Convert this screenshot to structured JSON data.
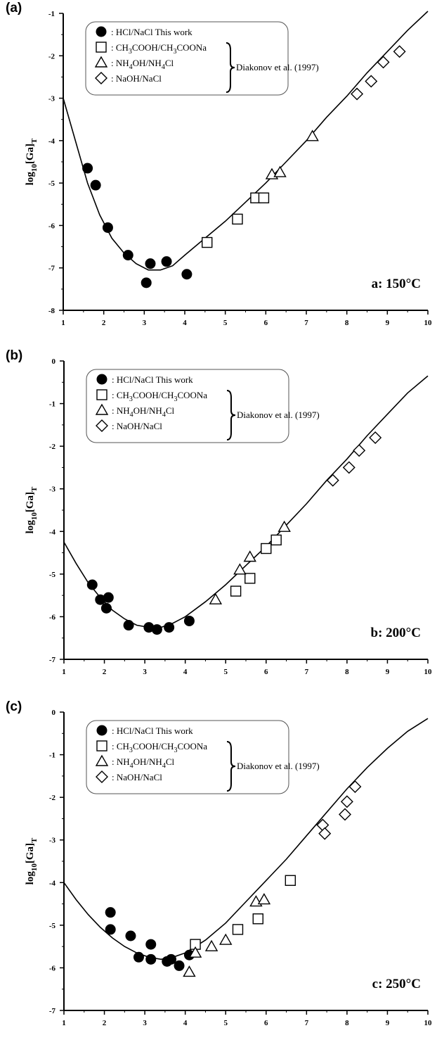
{
  "chart_data": [
    {
      "type": "scatter",
      "panel": "(a)",
      "temperature_label": "a: 150°C",
      "ylabel": "log10[Ga]T",
      "xlim": [
        1,
        10
      ],
      "ylim": [
        -8,
        -1
      ],
      "xticks": [
        "1",
        "2",
        "3",
        "4",
        "5",
        "6",
        "7",
        "8",
        "9",
        "10"
      ],
      "yticks": [
        "-1",
        "-2",
        "-3",
        "-4",
        "-5",
        "-6",
        "-7",
        "-8"
      ],
      "legend": {
        "placement": "top-left",
        "entries": [
          {
            "marker": "circle-filled",
            "label": ": HCl/NaCl   This work"
          },
          {
            "marker": "square",
            "label": ": CH3COOH/CH3COONa"
          },
          {
            "marker": "triangle",
            "label": ": NH4OH/NH4Cl"
          },
          {
            "marker": "diamond",
            "label": ": NaOH/NaCl"
          }
        ],
        "group_label": "Diakonov et al. (1997)"
      },
      "series": [
        {
          "marker": "circle-filled",
          "x": [
            1.6,
            1.8,
            2.1,
            2.6,
            3.05,
            3.15,
            3.55,
            4.05
          ],
          "y": [
            -4.65,
            -5.05,
            -6.05,
            -6.7,
            -7.35,
            -6.9,
            -6.85,
            -7.15
          ]
        },
        {
          "marker": "square",
          "x": [
            4.55,
            5.3,
            5.75,
            5.95
          ],
          "y": [
            -6.4,
            -5.85,
            -5.35,
            -5.35
          ]
        },
        {
          "marker": "triangle",
          "x": [
            6.15,
            6.35,
            7.15
          ],
          "y": [
            -4.8,
            -4.75,
            -3.9
          ]
        },
        {
          "marker": "diamond",
          "x": [
            8.25,
            8.6,
            8.9,
            9.3
          ],
          "y": [
            -2.9,
            -2.6,
            -2.15,
            -1.9
          ]
        }
      ],
      "fit_curve": {
        "x": [
          1.0,
          1.3,
          1.6,
          1.9,
          2.2,
          2.5,
          2.8,
          3.1,
          3.4,
          3.7,
          4.0,
          4.5,
          5.0,
          5.5,
          6.0,
          6.5,
          7.0,
          7.5,
          8.0,
          8.5,
          9.0,
          9.5,
          10.0
        ],
        "y": [
          -3.0,
          -4.0,
          -5.0,
          -5.75,
          -6.3,
          -6.65,
          -6.9,
          -7.05,
          -7.05,
          -6.95,
          -6.7,
          -6.3,
          -5.9,
          -5.45,
          -5.0,
          -4.5,
          -4.0,
          -3.45,
          -2.95,
          -2.4,
          -1.9,
          -1.4,
          -0.95
        ]
      }
    },
    {
      "type": "scatter",
      "panel": "(b)",
      "temperature_label": "b: 200°C",
      "ylabel": "log10[Ga]T",
      "xlim": [
        1,
        10
      ],
      "ylim": [
        -7,
        0
      ],
      "xticks": [
        "1",
        "2",
        "3",
        "4",
        "5",
        "6",
        "7",
        "8",
        "9",
        "10"
      ],
      "yticks": [
        "0",
        "-1",
        "-2",
        "-3",
        "-4",
        "-5",
        "-6",
        "-7"
      ],
      "legend": {
        "placement": "top-left",
        "entries": [
          {
            "marker": "circle-filled",
            "label": ": HCl/NaCl This work"
          },
          {
            "marker": "square",
            "label": ": CH3COOH/CH3COONa"
          },
          {
            "marker": "triangle",
            "label": ": NH4OH/NH4Cl"
          },
          {
            "marker": "diamond",
            "label": ": NaOH/NaCl"
          }
        ],
        "group_label": "Diakonov et al. (1997)"
      },
      "series": [
        {
          "marker": "circle-filled",
          "x": [
            1.7,
            1.9,
            2.05,
            2.1,
            2.6,
            3.1,
            3.3,
            3.6,
            4.1
          ],
          "y": [
            -5.25,
            -5.6,
            -5.8,
            -5.55,
            -6.2,
            -6.25,
            -6.3,
            -6.25,
            -6.1
          ]
        },
        {
          "marker": "square",
          "x": [
            5.25,
            5.6,
            6.0,
            6.25
          ],
          "y": [
            -5.4,
            -5.1,
            -4.4,
            -4.2
          ]
        },
        {
          "marker": "triangle",
          "x": [
            4.75,
            5.35,
            5.6,
            6.45
          ],
          "y": [
            -5.6,
            -4.9,
            -4.6,
            -3.9
          ]
        },
        {
          "marker": "diamond",
          "x": [
            7.65,
            8.05,
            8.3,
            8.7
          ],
          "y": [
            -2.8,
            -2.5,
            -2.1,
            -1.8
          ]
        }
      ],
      "fit_curve": {
        "x": [
          1.0,
          1.3,
          1.6,
          1.9,
          2.2,
          2.5,
          2.8,
          3.1,
          3.4,
          3.7,
          4.0,
          4.5,
          5.0,
          5.5,
          6.0,
          6.5,
          7.0,
          7.5,
          8.0,
          8.5,
          9.0,
          9.5,
          10.0
        ],
        "y": [
          -4.25,
          -4.75,
          -5.2,
          -5.55,
          -5.85,
          -6.05,
          -6.2,
          -6.25,
          -6.25,
          -6.15,
          -6.0,
          -5.65,
          -5.25,
          -4.8,
          -4.35,
          -3.85,
          -3.35,
          -2.8,
          -2.3,
          -1.75,
          -1.25,
          -0.75,
          -0.35
        ]
      }
    },
    {
      "type": "scatter",
      "panel": "(c)",
      "temperature_label": "c: 250°C",
      "ylabel": "log10[Ga]T",
      "xlim": [
        1,
        10
      ],
      "ylim": [
        -7,
        0
      ],
      "xticks": [
        "1",
        "2",
        "3",
        "4",
        "5",
        "6",
        "7",
        "8",
        "9",
        "10"
      ],
      "yticks": [
        "0",
        "-1",
        "-2",
        "-3",
        "-4",
        "-5",
        "-6",
        "-7"
      ],
      "legend": {
        "placement": "top-left",
        "entries": [
          {
            "marker": "circle-filled",
            "label": ": HCl/NaCl This work"
          },
          {
            "marker": "square",
            "label": ": CH3COOH/CH3COONa"
          },
          {
            "marker": "triangle",
            "label": ": NH4OH/NH4Cl"
          },
          {
            "marker": "diamond",
            "label": ": NaOH/NaCl"
          }
        ],
        "group_label": "Diakonov et al. (1997)"
      },
      "series": [
        {
          "marker": "circle-filled",
          "x": [
            2.15,
            2.15,
            2.65,
            2.85,
            3.15,
            3.15,
            3.55,
            3.65,
            3.85,
            4.1
          ],
          "y": [
            -4.7,
            -5.1,
            -5.25,
            -5.75,
            -5.45,
            -5.8,
            -5.85,
            -5.8,
            -5.95,
            -5.7
          ]
        },
        {
          "marker": "square",
          "x": [
            4.25,
            5.3,
            5.8,
            6.6
          ],
          "y": [
            -5.45,
            -5.1,
            -4.85,
            -3.95
          ]
        },
        {
          "marker": "triangle",
          "x": [
            4.1,
            4.25,
            4.65,
            5.0,
            5.75,
            5.95
          ],
          "y": [
            -6.1,
            -5.65,
            -5.5,
            -5.35,
            -4.45,
            -4.4
          ]
        },
        {
          "marker": "diamond",
          "x": [
            7.4,
            7.45,
            7.95,
            8.0,
            8.2
          ],
          "y": [
            -2.65,
            -2.85,
            -2.4,
            -2.1,
            -1.75
          ]
        }
      ],
      "fit_curve": {
        "x": [
          1.0,
          1.3,
          1.6,
          1.9,
          2.2,
          2.5,
          2.8,
          3.1,
          3.4,
          3.7,
          4.0,
          4.5,
          5.0,
          5.5,
          6.0,
          6.5,
          7.0,
          7.5,
          8.0,
          8.5,
          9.0,
          9.5,
          10.0
        ],
        "y": [
          -4.0,
          -4.4,
          -4.75,
          -5.05,
          -5.3,
          -5.5,
          -5.65,
          -5.75,
          -5.8,
          -5.75,
          -5.65,
          -5.35,
          -4.95,
          -4.45,
          -3.95,
          -3.45,
          -2.9,
          -2.35,
          -1.8,
          -1.3,
          -0.85,
          -0.45,
          -0.15
        ]
      }
    }
  ]
}
